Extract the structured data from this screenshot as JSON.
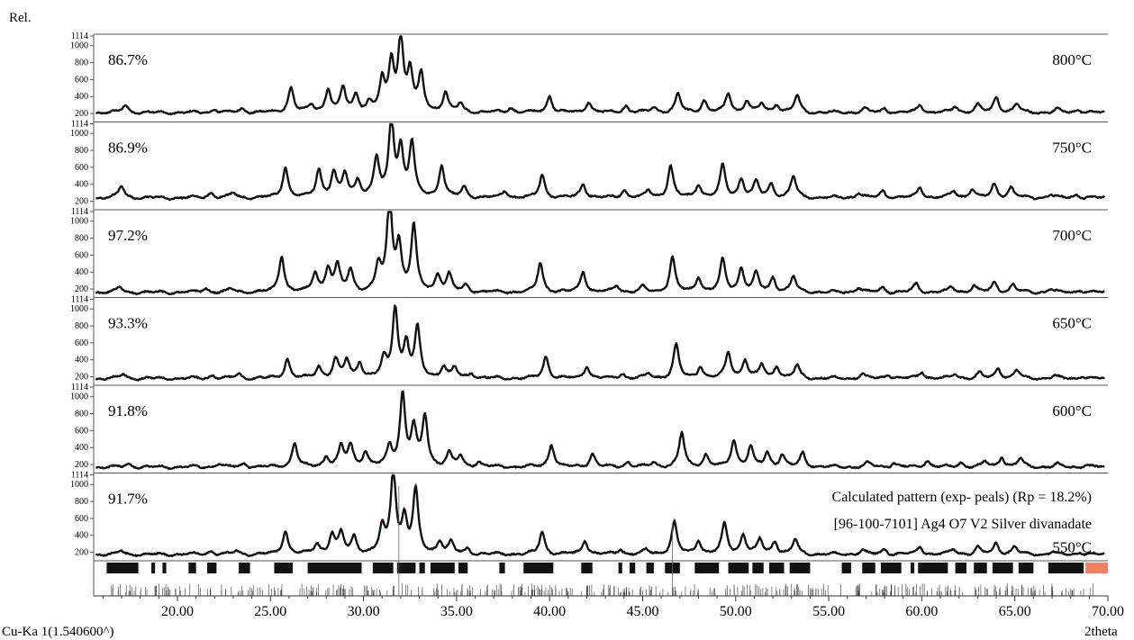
{
  "chart_data": {
    "type": "line",
    "y_unit_label": "Rel.",
    "xlabel": "2theta",
    "radiation_label": "Cu-Ka 1(1.540600^)",
    "xlim": [
      15.5,
      70
    ],
    "ylim": [
      100,
      1114
    ],
    "x_ticks": [
      "20.00",
      "25.00",
      "30.00",
      "35.00",
      "40.00",
      "45.00",
      "50.00",
      "55.00",
      "60.00",
      "65.00",
      "70.00"
    ],
    "y_ticks": [
      "1114",
      "1000",
      "800",
      "600",
      "400",
      "200"
    ],
    "color": "#111111",
    "calc_color": "#cc3333",
    "legend_marker_color": "#f08060",
    "series": [
      {
        "name": "800°C",
        "percent": "86.7%",
        "baseline": 210,
        "peaks": [
          [
            17.2,
            90
          ],
          [
            22,
            40
          ],
          [
            23.5,
            50
          ],
          [
            26.1,
            300
          ],
          [
            27.2,
            80
          ],
          [
            28.1,
            270
          ],
          [
            28.9,
            280
          ],
          [
            29.6,
            200
          ],
          [
            30.3,
            100
          ],
          [
            31.0,
            360
          ],
          [
            31.5,
            560
          ],
          [
            32.0,
            850
          ],
          [
            32.5,
            460
          ],
          [
            33.1,
            430
          ],
          [
            34.4,
            230
          ],
          [
            35.2,
            100
          ],
          [
            37.9,
            60
          ],
          [
            40.0,
            200
          ],
          [
            42.1,
            130
          ],
          [
            44.1,
            80
          ],
          [
            45.6,
            60
          ],
          [
            46.9,
            220
          ],
          [
            48.3,
            140
          ],
          [
            49.6,
            220
          ],
          [
            50.6,
            140
          ],
          [
            51.4,
            100
          ],
          [
            52.2,
            100
          ],
          [
            53.3,
            200
          ],
          [
            56.9,
            50
          ],
          [
            58.0,
            50
          ],
          [
            59.9,
            90
          ],
          [
            61.8,
            70
          ],
          [
            63.0,
            90
          ],
          [
            64.0,
            180
          ],
          [
            65.1,
            100
          ],
          [
            67.3,
            40
          ],
          [
            68.4,
            40
          ]
        ]
      },
      {
        "name": "750°C",
        "percent": "86.9%",
        "baseline": 240,
        "peaks": [
          [
            17.0,
            140
          ],
          [
            21.8,
            60
          ],
          [
            23.0,
            60
          ],
          [
            25.8,
            360
          ],
          [
            27.6,
            330
          ],
          [
            28.4,
            290
          ],
          [
            29.0,
            270
          ],
          [
            29.7,
            200
          ],
          [
            30.7,
            450
          ],
          [
            31.5,
            900
          ],
          [
            32.0,
            540
          ],
          [
            32.6,
            630
          ],
          [
            34.2,
            380
          ],
          [
            35.4,
            120
          ],
          [
            37.6,
            80
          ],
          [
            39.6,
            270
          ],
          [
            41.8,
            170
          ],
          [
            44.0,
            90
          ],
          [
            45.3,
            80
          ],
          [
            46.5,
            380
          ],
          [
            48.0,
            160
          ],
          [
            49.3,
            380
          ],
          [
            50.3,
            220
          ],
          [
            51.1,
            180
          ],
          [
            51.9,
            160
          ],
          [
            53.1,
            250
          ],
          [
            56.6,
            60
          ],
          [
            57.9,
            80
          ],
          [
            59.9,
            130
          ],
          [
            61.7,
            80
          ],
          [
            62.7,
            100
          ],
          [
            63.9,
            160
          ],
          [
            64.8,
            120
          ],
          [
            66.9,
            40
          ],
          [
            68.3,
            40
          ]
        ]
      },
      {
        "name": "700°C",
        "percent": "97.2%",
        "baseline": 160,
        "peaks": [
          [
            16.9,
            60
          ],
          [
            21.5,
            50
          ],
          [
            22.9,
            40
          ],
          [
            25.6,
            430
          ],
          [
            27.4,
            220
          ],
          [
            28.1,
            280
          ],
          [
            28.6,
            300
          ],
          [
            29.3,
            250
          ],
          [
            30.8,
            300
          ],
          [
            31.4,
            1060
          ],
          [
            31.9,
            530
          ],
          [
            32.7,
            770
          ],
          [
            34.0,
            200
          ],
          [
            34.6,
            200
          ],
          [
            35.5,
            80
          ],
          [
            39.5,
            350
          ],
          [
            41.8,
            250
          ],
          [
            43.6,
            80
          ],
          [
            45.0,
            60
          ],
          [
            46.6,
            420
          ],
          [
            48.0,
            180
          ],
          [
            49.3,
            380
          ],
          [
            50.3,
            280
          ],
          [
            51.1,
            220
          ],
          [
            52.0,
            170
          ],
          [
            53.1,
            180
          ],
          [
            56.6,
            60
          ],
          [
            57.9,
            60
          ],
          [
            59.7,
            100
          ],
          [
            61.6,
            60
          ],
          [
            62.8,
            80
          ],
          [
            63.9,
            120
          ],
          [
            64.9,
            90
          ],
          [
            66.9,
            40
          ],
          [
            68.5,
            30
          ]
        ]
      },
      {
        "name": "650°C",
        "percent": "93.3%",
        "baseline": 180,
        "peaks": [
          [
            17.1,
            50
          ],
          [
            21.9,
            40
          ],
          [
            23.3,
            50
          ],
          [
            25.9,
            230
          ],
          [
            27.6,
            140
          ],
          [
            28.5,
            220
          ],
          [
            29.1,
            210
          ],
          [
            29.8,
            180
          ],
          [
            31.1,
            220
          ],
          [
            31.7,
            820
          ],
          [
            32.3,
            400
          ],
          [
            32.9,
            580
          ],
          [
            34.3,
            140
          ],
          [
            34.9,
            120
          ],
          [
            35.8,
            60
          ],
          [
            39.8,
            260
          ],
          [
            42.0,
            150
          ],
          [
            43.9,
            60
          ],
          [
            45.3,
            50
          ],
          [
            46.8,
            400
          ],
          [
            48.1,
            140
          ],
          [
            49.6,
            310
          ],
          [
            50.5,
            220
          ],
          [
            51.4,
            160
          ],
          [
            52.2,
            140
          ],
          [
            53.3,
            150
          ],
          [
            56.8,
            50
          ],
          [
            58.2,
            50
          ],
          [
            60.0,
            80
          ],
          [
            61.8,
            50
          ],
          [
            63.1,
            60
          ],
          [
            64.1,
            120
          ],
          [
            65.1,
            100
          ],
          [
            67.1,
            30
          ],
          [
            68.6,
            30
          ]
        ]
      },
      {
        "name": "600°C",
        "percent": "91.8%",
        "baseline": 170,
        "peaks": [
          [
            17.4,
            40
          ],
          [
            22.2,
            40
          ],
          [
            23.6,
            40
          ],
          [
            26.3,
            280
          ],
          [
            28.0,
            120
          ],
          [
            28.8,
            230
          ],
          [
            29.3,
            250
          ],
          [
            30.1,
            170
          ],
          [
            31.4,
            230
          ],
          [
            32.1,
            850
          ],
          [
            32.7,
            440
          ],
          [
            33.3,
            590
          ],
          [
            34.6,
            160
          ],
          [
            35.2,
            120
          ],
          [
            36.2,
            60
          ],
          [
            40.1,
            270
          ],
          [
            42.3,
            160
          ],
          [
            44.2,
            60
          ],
          [
            45.6,
            50
          ],
          [
            47.1,
            400
          ],
          [
            48.4,
            140
          ],
          [
            49.9,
            320
          ],
          [
            50.8,
            230
          ],
          [
            51.7,
            160
          ],
          [
            52.5,
            140
          ],
          [
            53.6,
            160
          ],
          [
            57.1,
            50
          ],
          [
            58.5,
            50
          ],
          [
            60.3,
            80
          ],
          [
            62.1,
            50
          ],
          [
            63.4,
            60
          ],
          [
            64.3,
            120
          ],
          [
            65.3,
            100
          ],
          [
            67.3,
            30
          ],
          [
            68.8,
            30
          ]
        ]
      },
      {
        "name": "550°C",
        "percent": "91.7%",
        "baseline": 175,
        "peaks": [
          [
            17.0,
            40
          ],
          [
            21.8,
            40
          ],
          [
            23.2,
            40
          ],
          [
            25.8,
            280
          ],
          [
            27.5,
            120
          ],
          [
            28.3,
            230
          ],
          [
            28.8,
            240
          ],
          [
            29.5,
            200
          ],
          [
            31.0,
            300
          ],
          [
            31.6,
            980
          ],
          [
            32.2,
            400
          ],
          [
            32.8,
            740
          ],
          [
            34.1,
            150
          ],
          [
            34.7,
            130
          ],
          [
            35.6,
            60
          ],
          [
            39.6,
            270
          ],
          [
            41.9,
            170
          ],
          [
            43.8,
            60
          ],
          [
            45.2,
            50
          ],
          [
            46.7,
            380
          ],
          [
            48.0,
            160
          ],
          [
            49.4,
            360
          ],
          [
            50.4,
            230
          ],
          [
            51.3,
            170
          ],
          [
            52.1,
            150
          ],
          [
            53.2,
            170
          ],
          [
            56.8,
            50
          ],
          [
            58.0,
            60
          ],
          [
            59.9,
            90
          ],
          [
            61.7,
            60
          ],
          [
            63.0,
            80
          ],
          [
            64.0,
            130
          ],
          [
            65.0,
            90
          ],
          [
            67.0,
            30
          ],
          [
            68.5,
            30
          ]
        ]
      }
    ],
    "calculated_legend": {
      "line1": "Calculated pattern (exp- peals) (Rp = 18.2%)",
      "line2": "[96-100-7101] Ag4 O7 V2 Silver divanadate"
    },
    "reference_blocks": [
      [
        16.2,
        17.9
      ],
      [
        18.6,
        18.8
      ],
      [
        19.2,
        19.4
      ],
      [
        20.6,
        21.0
      ],
      [
        21.6,
        22.1
      ],
      [
        23.3,
        23.9
      ],
      [
        25.2,
        26.2
      ],
      [
        27.0,
        29.9
      ],
      [
        30.5,
        31.6
      ],
      [
        31.8,
        32.8
      ],
      [
        33.0,
        33.3
      ],
      [
        33.6,
        34.9
      ],
      [
        35.1,
        35.6
      ],
      [
        37.3,
        37.6
      ],
      [
        38.6,
        40.2
      ],
      [
        41.7,
        42.3
      ],
      [
        43.7,
        43.9
      ],
      [
        44.3,
        44.6
      ],
      [
        45.2,
        45.6
      ],
      [
        46.2,
        47.0
      ],
      [
        47.8,
        49.1
      ],
      [
        49.6,
        50.7
      ],
      [
        50.9,
        51.5
      ],
      [
        51.8,
        52.6
      ],
      [
        52.9,
        54.0
      ],
      [
        55.7,
        56.2
      ],
      [
        56.8,
        57.5
      ],
      [
        57.8,
        58.9
      ],
      [
        59.4,
        59.6
      ],
      [
        59.8,
        61.4
      ],
      [
        61.8,
        62.4
      ],
      [
        62.8,
        63.5
      ],
      [
        63.8,
        64.9
      ],
      [
        65.2,
        66.0
      ],
      [
        66.8,
        68.7
      ]
    ]
  }
}
